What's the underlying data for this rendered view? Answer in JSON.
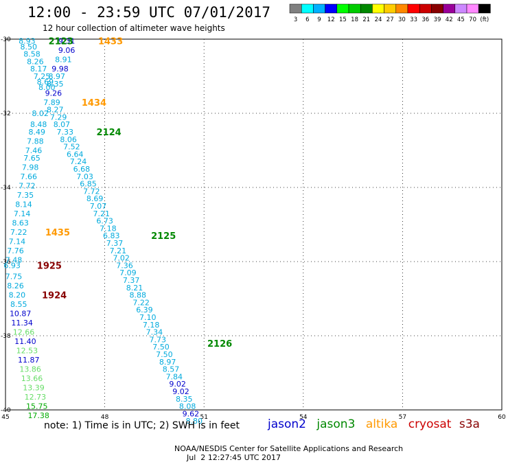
{
  "header": {
    "title": "12:00 - 23:59 UTC 07/01/2017",
    "subtitle": "12 hour collection of altimeter wave heights"
  },
  "scale": {
    "colors": [
      "#808080",
      "#00ffff",
      "#00b0ff",
      "#0000ff",
      "#00ff00",
      "#00cc00",
      "#008800",
      "#ffff00",
      "#ffcc00",
      "#ff8800",
      "#ff0000",
      "#cc0000",
      "#880000",
      "#990099",
      "#cc88ff",
      "#ff88ff",
      "#000000"
    ],
    "labels": [
      "3",
      "6",
      "9",
      "12",
      "15",
      "18",
      "21",
      "24",
      "27",
      "30",
      "33",
      "36",
      "39",
      "42",
      "45",
      "70",
      "(ft)"
    ]
  },
  "axes": {
    "x_ticks": [
      45,
      48,
      51,
      54,
      57,
      60
    ],
    "y_ticks": [
      -30,
      -32,
      -34,
      -36,
      -38,
      -40
    ],
    "x_range": [
      45,
      60
    ],
    "y_range": [
      -30,
      -40
    ]
  },
  "footer": {
    "note": "note: 1) Time is in UTC; 2) SWH is in feet",
    "credit": "NOAA/NESDIS Center for Satellite Applications and Research",
    "timestamp": "Jul  2 12:27:45 UTC 2017",
    "legend": [
      {
        "name": "jason2",
        "color": "#0000cc"
      },
      {
        "name": "jason3",
        "color": "#008800"
      },
      {
        "name": "altika",
        "color": "#ff9900"
      },
      {
        "name": "cryosat",
        "color": "#cc0000"
      },
      {
        "name": "s3a",
        "color": "#880000"
      }
    ]
  },
  "time_labels": [
    {
      "text": "2123",
      "lon": 46.3,
      "lat": -30.05,
      "color": "#008800"
    },
    {
      "text": "1433",
      "lon": 47.8,
      "lat": -30.05,
      "color": "#ff9900"
    },
    {
      "text": "1434",
      "lon": 47.3,
      "lat": -31.7,
      "color": "#ff9900"
    },
    {
      "text": "2124",
      "lon": 47.75,
      "lat": -32.5,
      "color": "#008800"
    },
    {
      "text": "1435",
      "lon": 46.2,
      "lat": -35.2,
      "color": "#ff9900"
    },
    {
      "text": "2125",
      "lon": 49.4,
      "lat": -35.3,
      "color": "#008800"
    },
    {
      "text": "1925",
      "lon": 45.95,
      "lat": -36.1,
      "color": "#880000"
    },
    {
      "text": "1924",
      "lon": 46.1,
      "lat": -36.9,
      "color": "#880000"
    },
    {
      "text": "2126",
      "lon": 51.1,
      "lat": -38.2,
      "color": "#008800"
    }
  ],
  "observations": [
    {
      "v": "8.93",
      "lon": 45.65,
      "lat": -30.05,
      "c": "#00aadd"
    },
    {
      "v": "8.50",
      "lon": 45.7,
      "lat": -30.2,
      "c": "#00aadd"
    },
    {
      "v": "8.58",
      "lon": 45.8,
      "lat": -30.4,
      "c": "#00aadd"
    },
    {
      "v": "8.26",
      "lon": 45.9,
      "lat": -30.6,
      "c": "#00aadd"
    },
    {
      "v": "8.17",
      "lon": 46.0,
      "lat": -30.8,
      "c": "#00aadd"
    },
    {
      "v": "7.25",
      "lon": 46.1,
      "lat": -31.0,
      "c": "#00aadd"
    },
    {
      "v": "8.69",
      "lon": 46.2,
      "lat": -31.15,
      "c": "#00aadd"
    },
    {
      "v": "8.00",
      "lon": 46.25,
      "lat": -31.3,
      "c": "#00aadd"
    },
    {
      "v": "8.02",
      "lon": 46.05,
      "lat": -32.0,
      "c": "#00aadd"
    },
    {
      "v": "8.48",
      "lon": 46.0,
      "lat": -32.3,
      "c": "#00aadd"
    },
    {
      "v": "8.49",
      "lon": 45.95,
      "lat": -32.5,
      "c": "#00aadd"
    },
    {
      "v": "7.88",
      "lon": 45.9,
      "lat": -32.75,
      "c": "#00aadd"
    },
    {
      "v": "7.46",
      "lon": 45.85,
      "lat": -33.0,
      "c": "#00aadd"
    },
    {
      "v": "7.65",
      "lon": 45.8,
      "lat": -33.2,
      "c": "#00aadd"
    },
    {
      "v": "7.98",
      "lon": 45.75,
      "lat": -33.45,
      "c": "#00aadd"
    },
    {
      "v": "7.66",
      "lon": 45.7,
      "lat": -33.7,
      "c": "#00aadd"
    },
    {
      "v": "7.72",
      "lon": 45.65,
      "lat": -33.95,
      "c": "#00aadd"
    },
    {
      "v": "7.35",
      "lon": 45.6,
      "lat": -34.2,
      "c": "#00aadd"
    },
    {
      "v": "8.14",
      "lon": 45.55,
      "lat": -34.45,
      "c": "#00aadd"
    },
    {
      "v": "7.14",
      "lon": 45.5,
      "lat": -34.7,
      "c": "#00aadd"
    },
    {
      "v": "8.63",
      "lon": 45.45,
      "lat": -34.95,
      "c": "#00aadd"
    },
    {
      "v": "7.22",
      "lon": 45.4,
      "lat": -35.2,
      "c": "#00aadd"
    },
    {
      "v": "7.14",
      "lon": 45.35,
      "lat": -35.45,
      "c": "#00aadd"
    },
    {
      "v": "7.76",
      "lon": 45.3,
      "lat": -35.7,
      "c": "#00aadd"
    },
    {
      "v": "7.48",
      "lon": 45.25,
      "lat": -35.95,
      "c": "#00aadd"
    },
    {
      "v": "6.93",
      "lon": 45.2,
      "lat": -36.1,
      "c": "#00aadd"
    },
    {
      "v": "7.75",
      "lon": 45.25,
      "lat": -36.4,
      "c": "#00aadd"
    },
    {
      "v": "8.26",
      "lon": 45.3,
      "lat": -36.65,
      "c": "#00aadd"
    },
    {
      "v": "8.20",
      "lon": 45.35,
      "lat": -36.9,
      "c": "#00aadd"
    },
    {
      "v": "8.55",
      "lon": 45.4,
      "lat": -37.15,
      "c": "#00aadd"
    },
    {
      "v": "10.87",
      "lon": 45.45,
      "lat": -37.4,
      "c": "#0000cc"
    },
    {
      "v": "11.34",
      "lon": 45.5,
      "lat": -37.65,
      "c": "#0000cc"
    },
    {
      "v": "12.66",
      "lon": 45.55,
      "lat": -37.9,
      "c": "#66dd66"
    },
    {
      "v": "11.40",
      "lon": 45.6,
      "lat": -38.15,
      "c": "#0000cc"
    },
    {
      "v": "12.53",
      "lon": 45.65,
      "lat": -38.4,
      "c": "#66dd66"
    },
    {
      "v": "11.87",
      "lon": 45.7,
      "lat": -38.65,
      "c": "#0000cc"
    },
    {
      "v": "13.86",
      "lon": 45.75,
      "lat": -38.9,
      "c": "#66dd66"
    },
    {
      "v": "13.66",
      "lon": 45.8,
      "lat": -39.15,
      "c": "#66dd66"
    },
    {
      "v": "13.39",
      "lon": 45.85,
      "lat": -39.4,
      "c": "#66dd66"
    },
    {
      "v": "12.73",
      "lon": 45.9,
      "lat": -39.65,
      "c": "#66dd66"
    },
    {
      "v": "15.75",
      "lon": 45.95,
      "lat": -39.9,
      "c": "#00aa00"
    },
    {
      "v": "17.38",
      "lon": 46.0,
      "lat": -40.15,
      "c": "#00aa00"
    },
    {
      "v": "9.31",
      "lon": 46.85,
      "lat": -30.05,
      "c": "#0000cc"
    },
    {
      "v": "9.06",
      "lon": 46.85,
      "lat": -30.3,
      "c": "#0000cc"
    },
    {
      "v": "8.91",
      "lon": 46.75,
      "lat": -30.55,
      "c": "#00aadd"
    },
    {
      "v": "9.98",
      "lon": 46.65,
      "lat": -30.8,
      "c": "#0000cc"
    },
    {
      "v": "8.97",
      "lon": 46.55,
      "lat": -31.0,
      "c": "#00aadd"
    },
    {
      "v": "8.35",
      "lon": 46.5,
      "lat": -31.2,
      "c": "#00aadd"
    },
    {
      "v": "9.26",
      "lon": 46.45,
      "lat": -31.45,
      "c": "#0000cc"
    },
    {
      "v": "7.89",
      "lon": 46.4,
      "lat": -31.7,
      "c": "#00aadd"
    },
    {
      "v": "8.27",
      "lon": 46.5,
      "lat": -31.9,
      "c": "#00aadd"
    },
    {
      "v": "7.29",
      "lon": 46.6,
      "lat": -32.1,
      "c": "#00aadd"
    },
    {
      "v": "8.07",
      "lon": 46.7,
      "lat": -32.3,
      "c": "#00aadd"
    },
    {
      "v": "7.33",
      "lon": 46.8,
      "lat": -32.5,
      "c": "#00aadd"
    },
    {
      "v": "8.06",
      "lon": 46.9,
      "lat": -32.7,
      "c": "#00aadd"
    },
    {
      "v": "7.52",
      "lon": 47.0,
      "lat": -32.9,
      "c": "#00aadd"
    },
    {
      "v": "6.64",
      "lon": 47.1,
      "lat": -33.1,
      "c": "#00aadd"
    },
    {
      "v": "7.24",
      "lon": 47.2,
      "lat": -33.3,
      "c": "#00aadd"
    },
    {
      "v": "6.68",
      "lon": 47.3,
      "lat": -33.5,
      "c": "#00aadd"
    },
    {
      "v": "7.03",
      "lon": 47.4,
      "lat": -33.7,
      "c": "#00aadd"
    },
    {
      "v": "6.85",
      "lon": 47.5,
      "lat": -33.9,
      "c": "#00aadd"
    },
    {
      "v": "7.72",
      "lon": 47.6,
      "lat": -34.1,
      "c": "#00aadd"
    },
    {
      "v": "8.69",
      "lon": 47.7,
      "lat": -34.3,
      "c": "#00aadd"
    },
    {
      "v": "7.07",
      "lon": 47.8,
      "lat": -34.5,
      "c": "#00aadd"
    },
    {
      "v": "7.21",
      "lon": 47.9,
      "lat": -34.7,
      "c": "#00aadd"
    },
    {
      "v": "6.73",
      "lon": 48.0,
      "lat": -34.9,
      "c": "#00aadd"
    },
    {
      "v": "7.18",
      "lon": 48.1,
      "lat": -35.1,
      "c": "#00aadd"
    },
    {
      "v": "6.83",
      "lon": 48.2,
      "lat": -35.3,
      "c": "#00aadd"
    },
    {
      "v": "7.37",
      "lon": 48.3,
      "lat": -35.5,
      "c": "#00aadd"
    },
    {
      "v": "7.21",
      "lon": 48.4,
      "lat": -35.7,
      "c": "#00aadd"
    },
    {
      "v": "7.02",
      "lon": 48.5,
      "lat": -35.9,
      "c": "#00aadd"
    },
    {
      "v": "7.36",
      "lon": 48.6,
      "lat": -36.1,
      "c": "#00aadd"
    },
    {
      "v": "7.09",
      "lon": 48.7,
      "lat": -36.3,
      "c": "#00aadd"
    },
    {
      "v": "7.37",
      "lon": 48.8,
      "lat": -36.5,
      "c": "#00aadd"
    },
    {
      "v": "8.21",
      "lon": 48.9,
      "lat": -36.7,
      "c": "#00aadd"
    },
    {
      "v": "8.88",
      "lon": 49.0,
      "lat": -36.9,
      "c": "#00aadd"
    },
    {
      "v": "7.22",
      "lon": 49.1,
      "lat": -37.1,
      "c": "#00aadd"
    },
    {
      "v": "6.39",
      "lon": 49.2,
      "lat": -37.3,
      "c": "#00aadd"
    },
    {
      "v": "7.10",
      "lon": 49.3,
      "lat": -37.5,
      "c": "#00aadd"
    },
    {
      "v": "7.18",
      "lon": 49.4,
      "lat": -37.7,
      "c": "#00aadd"
    },
    {
      "v": "7.34",
      "lon": 49.5,
      "lat": -37.9,
      "c": "#00aadd"
    },
    {
      "v": "7.73",
      "lon": 49.6,
      "lat": -38.1,
      "c": "#00aadd"
    },
    {
      "v": "7.50",
      "lon": 49.7,
      "lat": -38.3,
      "c": "#00aadd"
    },
    {
      "v": "7.50",
      "lon": 49.8,
      "lat": -38.5,
      "c": "#00aadd"
    },
    {
      "v": "8.97",
      "lon": 49.9,
      "lat": -38.7,
      "c": "#00aadd"
    },
    {
      "v": "8.57",
      "lon": 50.0,
      "lat": -38.9,
      "c": "#00aadd"
    },
    {
      "v": "7.84",
      "lon": 50.1,
      "lat": -39.1,
      "c": "#00aadd"
    },
    {
      "v": "9.02",
      "lon": 50.2,
      "lat": -39.3,
      "c": "#0000cc"
    },
    {
      "v": "9.02",
      "lon": 50.3,
      "lat": -39.5,
      "c": "#0000cc"
    },
    {
      "v": "8.35",
      "lon": 50.4,
      "lat": -39.7,
      "c": "#00aadd"
    },
    {
      "v": "8.08",
      "lon": 50.5,
      "lat": -39.9,
      "c": "#00aadd"
    },
    {
      "v": "9.62",
      "lon": 50.6,
      "lat": -40.1,
      "c": "#0000cc"
    },
    {
      "v": "8.80",
      "lon": 50.7,
      "lat": -40.3,
      "c": "#00aadd"
    }
  ]
}
